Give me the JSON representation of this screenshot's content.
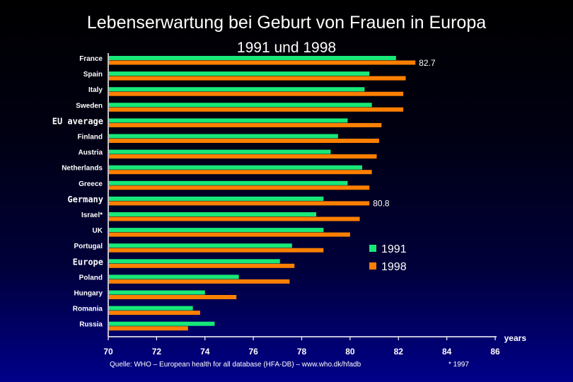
{
  "title": "Lebenserwartung bei Geburt von Frauen in Europa",
  "subtitle": "1991 und 1998",
  "source": "Quelle:  WHO – European health for all database (HFA-DB) – www.who.dk/hfadb",
  "footnote": "* 1997",
  "colors": {
    "s1991": "#18e878",
    "s1998": "#ff8000",
    "text": "#ffffff",
    "background_top": "#000000",
    "background_bottom": "#00008a"
  },
  "chart_data": {
    "type": "bar",
    "orientation": "horizontal",
    "title": "Lebenserwartung bei Geburt von Frauen in Europa",
    "subtitle": "1991 und 1998",
    "xlabel": "years",
    "ylabel": "",
    "xlim": [
      70,
      86
    ],
    "xticks": [
      "70",
      "72",
      "74",
      "76",
      "78",
      "80",
      "82",
      "84",
      "86"
    ],
    "categories": [
      "France",
      "Spain",
      "Italy",
      "Sweden",
      "EU average",
      "Finland",
      "Austria",
      "Netherlands",
      "Greece",
      "Germany",
      "Israel*",
      "UK",
      "Portugal",
      "Europe",
      "Poland",
      "Hungary",
      "Romania",
      "Russia"
    ],
    "highlighted": [
      "EU average",
      "Germany",
      "Europe"
    ],
    "series": [
      {
        "name": "1991",
        "values": [
          81.9,
          80.8,
          80.6,
          80.9,
          79.9,
          79.5,
          79.2,
          80.5,
          79.9,
          78.9,
          78.6,
          78.9,
          77.6,
          77.1,
          75.4,
          74.0,
          73.5,
          74.4
        ]
      },
      {
        "name": "1998",
        "values": [
          82.7,
          82.3,
          82.2,
          82.2,
          81.3,
          81.2,
          81.1,
          80.9,
          80.8,
          80.8,
          80.4,
          80.0,
          78.9,
          77.7,
          77.5,
          75.3,
          73.8,
          73.3
        ]
      }
    ],
    "annotations": [
      {
        "category": "France",
        "series": "1998",
        "text": "82.7"
      },
      {
        "category": "Germany",
        "series": "1998",
        "text": "80.8"
      }
    ],
    "legend": {
      "placement": "right-center",
      "entries": [
        "1991",
        "1998"
      ]
    }
  }
}
